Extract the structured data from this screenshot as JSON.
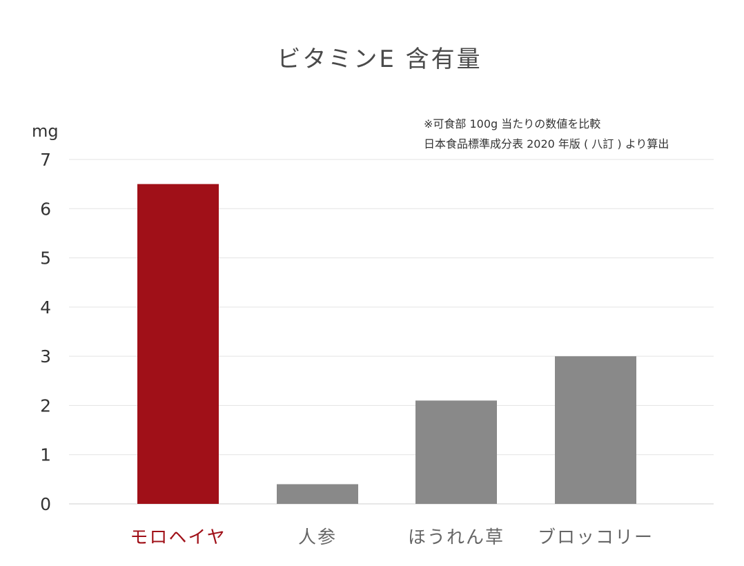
{
  "title": "ビタミンE 含有量",
  "note": {
    "line1": "※可食部 100g 当たりの数値を比較",
    "line2": "日本食品標準成分表 2020 年版 ( 八訂 ) より算出"
  },
  "colors": {
    "highlight": "#a01018",
    "default_bar": "#898989",
    "grid": "#e3e3e3",
    "axis_text": "#333333",
    "highlight_text": "#a01018",
    "label_text": "#666666"
  },
  "chart_data": {
    "type": "bar",
    "title": "ビタミンE 含有量",
    "ylabel": "mg",
    "xlabel": "",
    "ylim": [
      0,
      7
    ],
    "yticks": [
      "0",
      "1",
      "2",
      "3",
      "4",
      "5",
      "6",
      "7"
    ],
    "grid": true,
    "categories": [
      "モロヘイヤ",
      "人参",
      "ほうれん草",
      "ブロッコリー"
    ],
    "values": [
      6.5,
      0.4,
      2.1,
      3.0
    ],
    "highlighted": [
      "モロヘイヤ"
    ]
  }
}
